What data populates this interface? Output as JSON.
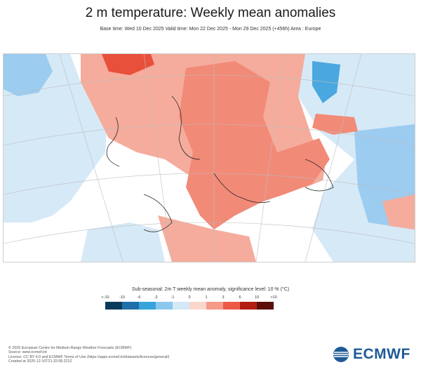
{
  "title": "2 m temperature: Weekly mean anomalies",
  "subtitle": "Base time: Wed 10 Dec 2025 Valid time: Mon 22 Dec 2025 - Mon 29 Dec 2025 (+456h) Area : Europe",
  "legend": {
    "title": "Sub-seasonal: 2m T weekly mean anomaly, significance level: 10 % (°C)",
    "ticks": [
      "<-10",
      "-10",
      "-6",
      "-3",
      "-1",
      "0",
      "1",
      "3",
      "6",
      "10",
      ">10"
    ],
    "colors": [
      "#0b3b5c",
      "#1f6fa8",
      "#38a3dc",
      "#8cc8ee",
      "#d4e8f6",
      "#fbd6cc",
      "#f69a8a",
      "#ec5a47",
      "#b41e12",
      "#5c0f0a"
    ]
  },
  "credits": [
    "© 2025 European Centre for Medium-Range Weather Forecasts (ECMWF)",
    "Source: www.ecmwf.int",
    "Licence: CC BY 4.0 and ECMWF Terms of Use (https://apps.ecmwf.int/datasets/licences/general/)",
    "Created at 2025-12-10T21:32:08.221Z"
  ],
  "logo": {
    "text": "ECMWF",
    "icon": "ecmwf-logo-icon"
  },
  "map_colors": {
    "land_warm": "#f5ac9c",
    "warm_mid": "#f28a78",
    "warm_strong": "#e8503b",
    "cool_light": "#d6e9f7",
    "cool_mid": "#9cccf0",
    "cool_strong": "#4aa7e0"
  }
}
